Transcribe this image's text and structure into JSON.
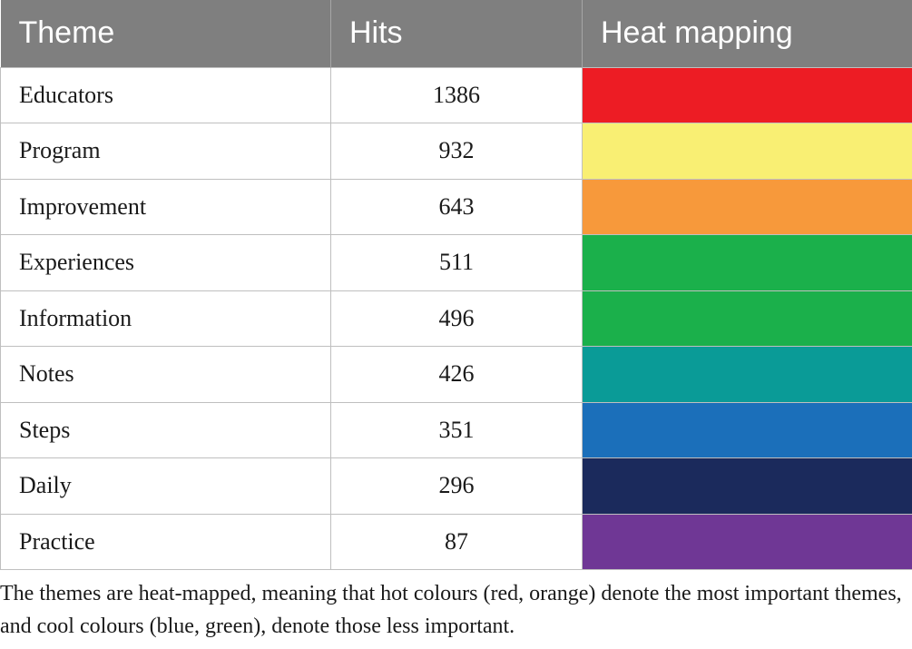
{
  "table": {
    "headers": [
      "Theme",
      "Hits",
      "Heat mapping"
    ],
    "rows": [
      {
        "theme": "Educators",
        "hits": "1386",
        "color": "#ed1c24"
      },
      {
        "theme": "Program",
        "hits": "932",
        "color": "#f9ef73"
      },
      {
        "theme": "Improvement",
        "hits": "643",
        "color": "#f7993b"
      },
      {
        "theme": "Experiences",
        "hits": "511",
        "color": "#1bb04b"
      },
      {
        "theme": "Information",
        "hits": "496",
        "color": "#1bb04b"
      },
      {
        "theme": "Notes",
        "hits": "426",
        "color": "#0a9b97"
      },
      {
        "theme": "Steps",
        "hits": "351",
        "color": "#1b6fba"
      },
      {
        "theme": "Daily",
        "hits": "296",
        "color": "#1b2a5c"
      },
      {
        "theme": "Practice",
        "hits": "87",
        "color": "#6f3795"
      }
    ]
  },
  "caption": "The themes are heat-mapped, meaning that hot colours (red, orange) denote the most important themes, and cool colours (blue, green), denote those less important."
}
